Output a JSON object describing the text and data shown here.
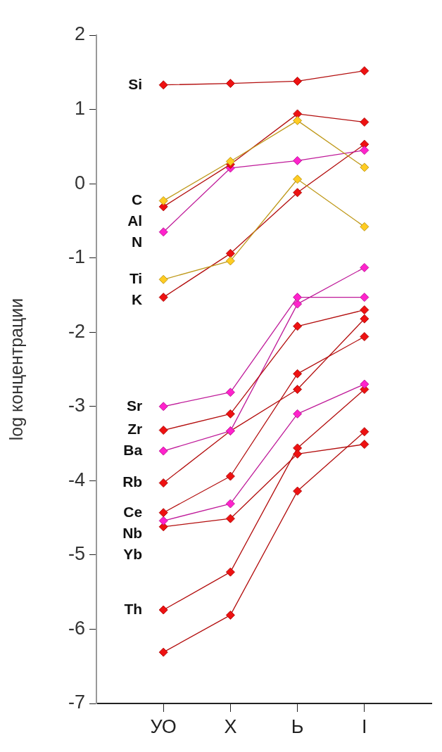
{
  "chart_data": {
    "type": "line",
    "ylabel": "log концентрации",
    "categories": [
      "УО",
      "Х",
      "Ь",
      "І"
    ],
    "ylim": [
      -7,
      2
    ],
    "yticks": [
      -7,
      -6,
      -5,
      -4,
      -3,
      -2,
      -1,
      0,
      1,
      2
    ],
    "grid": false,
    "legend": false,
    "marker": "diamond",
    "line_style": "solid",
    "series": [
      {
        "color": "#ee1111",
        "values": [
          1.33,
          1.35,
          1.38,
          1.52
        ]
      },
      {
        "color": "#ffcc22",
        "values": [
          -0.23,
          0.3,
          0.85,
          0.22
        ]
      },
      {
        "color": "#ee1111",
        "values": [
          -0.31,
          0.26,
          0.94,
          0.83
        ]
      },
      {
        "color": "#ff22cc",
        "values": [
          -0.65,
          0.21,
          0.31,
          0.45
        ]
      },
      {
        "color": "#ffcc22",
        "values": [
          -1.29,
          -1.04,
          0.06,
          -0.58
        ]
      },
      {
        "color": "#ee1111",
        "values": [
          -1.53,
          -0.94,
          -0.12,
          0.53
        ]
      },
      {
        "color": "#ff22cc",
        "values": [
          -3.0,
          -2.81,
          -1.53,
          -1.53
        ]
      },
      {
        "color": "#ee1111",
        "values": [
          -3.32,
          -3.1,
          -1.92,
          -1.7
        ]
      },
      {
        "color": "#ff22cc",
        "values": [
          -3.6,
          -3.33,
          -1.62,
          -1.13
        ]
      },
      {
        "color": "#ee1111",
        "values": [
          -4.03,
          -3.33,
          -2.77,
          -1.82
        ]
      },
      {
        "color": "#ee1111",
        "values": [
          -4.43,
          -3.94,
          -2.56,
          -2.06
        ]
      },
      {
        "color": "#ff22cc",
        "values": [
          -4.54,
          -4.31,
          -3.1,
          -2.7
        ]
      },
      {
        "color": "#ee1111",
        "values": [
          -4.62,
          -4.51,
          -3.64,
          -3.51
        ]
      },
      {
        "color": "#ee1111",
        "values": [
          -5.74,
          -5.23,
          -3.56,
          -2.77
        ]
      },
      {
        "color": "#ee1111",
        "values": [
          -6.31,
          -5.81,
          -4.14,
          -3.34
        ]
      }
    ],
    "annotations": [
      "Si",
      "C",
      "Al",
      "N",
      "Ti",
      "K",
      "Sr",
      "Zr",
      "Ba",
      "Rb",
      "Ce",
      "Nb",
      "Yb",
      "Th"
    ]
  }
}
